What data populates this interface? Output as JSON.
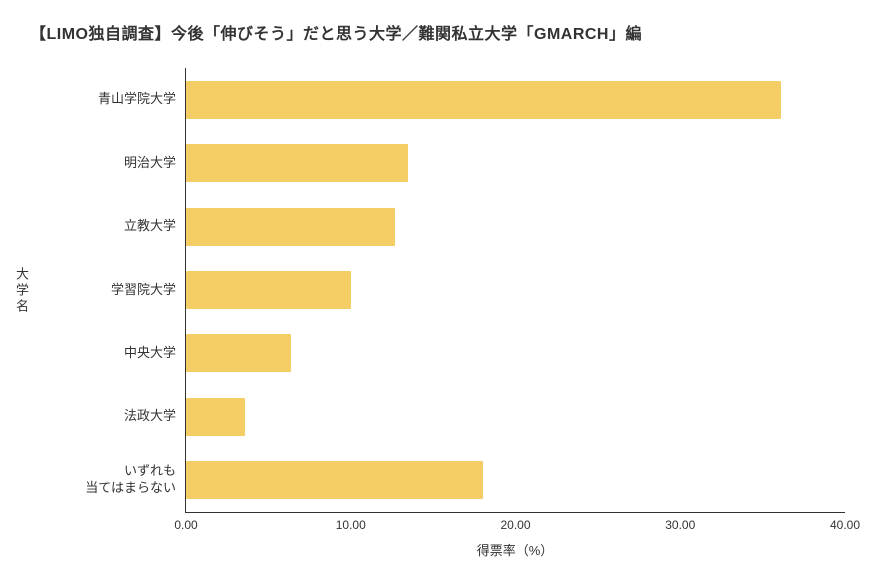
{
  "title": "【LIMO独自調査】今後「伸びそう」だと思う大学／難関私立大学「GMARCH」編",
  "chart_data": {
    "type": "bar",
    "orientation": "horizontal",
    "title": "【LIMO独自調査】今後「伸びそう」だと思う大学／難関私立大学「GMARCH」編",
    "categories": [
      "青山学院大学",
      "明治大学",
      "立教大学",
      "学習院大学",
      "中央大学",
      "法政大学",
      "いずれも\n当てはまらない"
    ],
    "values": [
      36.1,
      13.5,
      12.7,
      10.0,
      6.4,
      3.6,
      18.0
    ],
    "xlabel": "得票率（%）",
    "ylabel": "大学名",
    "xlim": [
      0,
      40
    ],
    "xticks": [
      0,
      10,
      20,
      30,
      40
    ],
    "xtick_labels": [
      "0.00",
      "10.00",
      "20.00",
      "30.00",
      "40.00"
    ],
    "bar_color": "#F5CD65",
    "grid": false,
    "legend": false
  }
}
